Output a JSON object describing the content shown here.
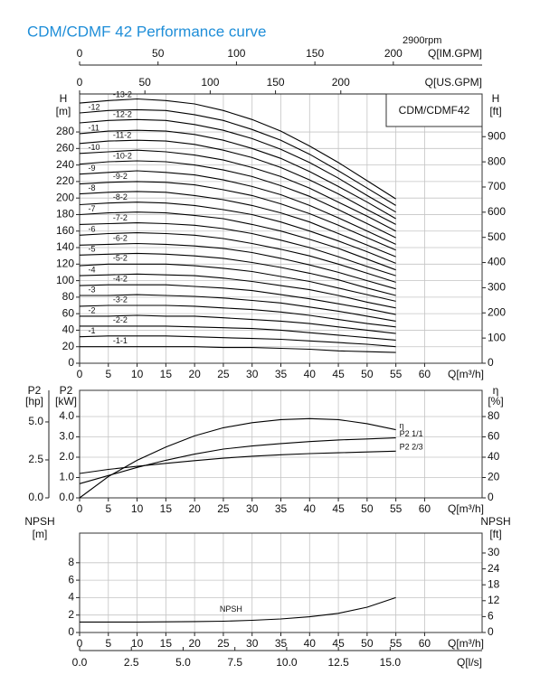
{
  "title": "CDM/CDMF 42 Performance curve",
  "speed": "2900rpm",
  "chart_data": [
    {
      "type": "line",
      "model": "CDM/CDMF42",
      "x_label": "Q[m³/h]",
      "y_label": "H",
      "y_unit": "[m]",
      "y2_label": "H",
      "y2_unit": "[ft]",
      "grid": true,
      "x": [
        0,
        5,
        10,
        15,
        20,
        25,
        30,
        35,
        40,
        45,
        50,
        55
      ],
      "xlim": [
        0,
        70
      ],
      "xticks": [
        0,
        5,
        10,
        15,
        20,
        25,
        30,
        35,
        40,
        45,
        50,
        55,
        60
      ],
      "ylim": [
        0,
        326
      ],
      "yticks": [
        0,
        20,
        40,
        60,
        80,
        100,
        120,
        140,
        160,
        180,
        200,
        220,
        240,
        260,
        280
      ],
      "y2lim": [
        0,
        1069.6
      ],
      "y2ticks": [
        0,
        100,
        200,
        300,
        400,
        500,
        600,
        700,
        800,
        900
      ],
      "top_axes": [
        {
          "label": "Q[IM.GPM]",
          "lim": [
            0,
            256.6
          ],
          "ticks": [
            0,
            50,
            100,
            150,
            200
          ]
        },
        {
          "label": "Q[US.GPM]",
          "lim": [
            0,
            308.2
          ],
          "ticks": [
            0,
            50,
            100,
            150,
            200
          ]
        }
      ],
      "series": [
        {
          "name": "-1-1",
          "color": "#000000",
          "values": [
            20,
            20,
            20,
            20,
            20,
            19,
            19,
            18,
            17,
            15,
            14,
            13
          ]
        },
        {
          "name": "-1",
          "color": "#000000",
          "values": [
            32,
            33,
            33,
            33,
            32,
            31,
            30,
            29,
            27,
            25,
            23,
            20
          ]
        },
        {
          "name": "-2-2",
          "color": "#000000",
          "values": [
            45,
            45,
            45,
            45,
            44,
            43,
            42,
            40,
            37,
            34,
            31,
            28
          ]
        },
        {
          "name": "-2",
          "color": "#000000",
          "values": [
            57,
            57,
            58,
            57,
            57,
            55,
            53,
            51,
            48,
            44,
            40,
            36
          ]
        },
        {
          "name": "-3-2",
          "color": "#000000",
          "values": [
            69,
            70,
            70,
            70,
            69,
            67,
            65,
            62,
            58,
            53,
            48,
            44
          ]
        },
        {
          "name": "-3",
          "color": "#000000",
          "values": [
            82,
            82,
            83,
            82,
            81,
            79,
            76,
            73,
            68,
            63,
            57,
            51
          ]
        },
        {
          "name": "-4-2",
          "color": "#000000",
          "values": [
            94,
            95,
            95,
            95,
            93,
            91,
            88,
            83,
            78,
            72,
            66,
            59
          ]
        },
        {
          "name": "-4",
          "color": "#000000",
          "values": [
            106,
            107,
            108,
            107,
            106,
            103,
            99,
            94,
            89,
            82,
            74,
            67
          ]
        },
        {
          "name": "-5-2",
          "color": "#000000",
          "values": [
            118,
            120,
            120,
            120,
            118,
            115,
            111,
            105,
            99,
            91,
            83,
            75
          ]
        },
        {
          "name": "-5",
          "color": "#000000",
          "values": [
            131,
            132,
            133,
            132,
            130,
            127,
            122,
            116,
            109,
            101,
            91,
            82
          ]
        },
        {
          "name": "-6-2",
          "color": "#000000",
          "values": [
            143,
            144,
            145,
            144,
            142,
            139,
            134,
            127,
            119,
            110,
            100,
            90
          ]
        },
        {
          "name": "-6",
          "color": "#000000",
          "values": [
            155,
            157,
            158,
            157,
            155,
            151,
            145,
            138,
            130,
            120,
            109,
            98
          ]
        },
        {
          "name": "-7-2",
          "color": "#000000",
          "values": [
            168,
            169,
            170,
            169,
            167,
            163,
            157,
            149,
            140,
            129,
            117,
            106
          ]
        },
        {
          "name": "-7",
          "color": "#000000",
          "values": [
            180,
            182,
            183,
            182,
            179,
            175,
            168,
            160,
            150,
            139,
            126,
            113
          ]
        },
        {
          "name": "-8-2",
          "color": "#000000",
          "values": [
            192,
            194,
            195,
            194,
            191,
            186,
            180,
            171,
            160,
            148,
            135,
            121
          ]
        },
        {
          "name": "-8",
          "color": "#000000",
          "values": [
            205,
            207,
            208,
            207,
            203,
            198,
            191,
            182,
            171,
            157,
            143,
            129
          ]
        },
        {
          "name": "-9-2",
          "color": "#000000",
          "values": [
            217,
            219,
            220,
            219,
            216,
            210,
            203,
            193,
            181,
            167,
            152,
            137
          ]
        },
        {
          "name": "-9",
          "color": "#000000",
          "values": [
            229,
            231,
            233,
            231,
            228,
            222,
            214,
            204,
            191,
            176,
            160,
            144
          ]
        },
        {
          "name": "-10-2",
          "color": "#000000",
          "values": [
            241,
            244,
            245,
            244,
            240,
            234,
            226,
            215,
            202,
            186,
            169,
            152
          ]
        },
        {
          "name": "-10",
          "color": "#000000",
          "values": [
            254,
            256,
            258,
            256,
            252,
            246,
            237,
            226,
            212,
            195,
            178,
            160
          ]
        },
        {
          "name": "-11-2",
          "color": "#000000",
          "values": [
            266,
            269,
            270,
            269,
            265,
            258,
            249,
            237,
            222,
            205,
            186,
            168
          ]
        },
        {
          "name": "-11",
          "color": "#000000",
          "values": [
            278,
            281,
            282,
            281,
            277,
            270,
            260,
            248,
            232,
            214,
            195,
            175
          ]
        },
        {
          "name": "-12-2",
          "color": "#000000",
          "values": [
            291,
            294,
            295,
            294,
            289,
            282,
            272,
            259,
            243,
            224,
            203,
            183
          ]
        },
        {
          "name": "-12",
          "color": "#000000",
          "values": [
            303,
            306,
            307,
            306,
            301,
            294,
            283,
            270,
            253,
            233,
            212,
            191
          ]
        },
        {
          "name": "-13-2",
          "color": "#000000",
          "values": [
            315,
            318,
            320,
            318,
            314,
            306,
            295,
            281,
            263,
            243,
            221,
            199
          ]
        }
      ]
    },
    {
      "type": "line",
      "x_label": "Q[m³/h]",
      "y_label": "P2",
      "y_unit": "[kW]",
      "y2_label": "η",
      "y2_unit": "[%]",
      "grid": true,
      "x": [
        0,
        5,
        10,
        15,
        20,
        25,
        30,
        35,
        40,
        45,
        50,
        55
      ],
      "xlim": [
        0,
        70
      ],
      "xticks": [
        0,
        5,
        10,
        15,
        20,
        25,
        30,
        35,
        40,
        45,
        50,
        55,
        60
      ],
      "ylim": [
        0,
        5.29
      ],
      "yticks": [
        {
          "value": 0,
          "label": "0.0"
        },
        {
          "value": 1,
          "label": "1.0"
        },
        {
          "value": 2,
          "label": "2.0"
        },
        {
          "value": 3,
          "label": "3.0"
        },
        {
          "value": 4,
          "label": "4.0"
        }
      ],
      "y2lim": [
        0,
        105.8
      ],
      "y2ticks": [
        0,
        20,
        40,
        60,
        80
      ],
      "hp_axis": {
        "label": "P2",
        "unit": "[hp]",
        "lim": [
          0,
          7.08
        ],
        "ticks": [
          {
            "value": 0,
            "label": "0.0"
          },
          2.5,
          {
            "value": 5,
            "label": "5.0"
          }
        ]
      },
      "series": [
        {
          "name": "η",
          "color": "#000000",
          "axis": "y2",
          "values": [
            0,
            21,
            37,
            50,
            61,
            69,
            74,
            77,
            78,
            77,
            73,
            67
          ]
        },
        {
          "name": "P2 1/1",
          "color": "#000000",
          "values": [
            0.7,
            1.1,
            1.5,
            1.85,
            2.15,
            2.4,
            2.55,
            2.67,
            2.77,
            2.85,
            2.9,
            2.95
          ]
        },
        {
          "name": "P2 2/3",
          "color": "#000000",
          "values": [
            1.2,
            1.4,
            1.55,
            1.7,
            1.83,
            1.95,
            2.05,
            2.12,
            2.18,
            2.22,
            2.26,
            2.3
          ]
        }
      ]
    },
    {
      "type": "line",
      "x_label": "Q[m³/h]",
      "y_label": "NPSH",
      "y_unit": "[m]",
      "y2_label": "NPSH",
      "y2_unit": "[ft]",
      "grid": true,
      "x": [
        0,
        5,
        10,
        15,
        20,
        25,
        30,
        35,
        40,
        45,
        50,
        55
      ],
      "xlim": [
        0,
        70
      ],
      "xticks": [
        0,
        5,
        10,
        15,
        20,
        25,
        30,
        35,
        40,
        45,
        50,
        55,
        60
      ],
      "ylim": [
        0,
        11.4
      ],
      "yticks": [
        0,
        2,
        4,
        6,
        8
      ],
      "y2lim": [
        0,
        37.5
      ],
      "y2ticks": [
        0,
        6,
        12,
        18,
        24,
        30
      ],
      "bottom_axis": {
        "label": "Q[l/s]",
        "lim": [
          0,
          19.44
        ],
        "ticks": [
          {
            "value": 0,
            "label": "0.0"
          },
          2.5,
          {
            "value": 5,
            "label": "5.0"
          },
          7.5,
          {
            "value": 10,
            "label": "10.0"
          },
          12.5,
          {
            "value": 15,
            "label": "15.0"
          }
        ]
      },
      "series": [
        {
          "name": "NPSH",
          "color": "#000000",
          "values": [
            1.2,
            1.2,
            1.2,
            1.22,
            1.25,
            1.3,
            1.4,
            1.55,
            1.8,
            2.2,
            2.9,
            4.0
          ]
        }
      ]
    }
  ]
}
